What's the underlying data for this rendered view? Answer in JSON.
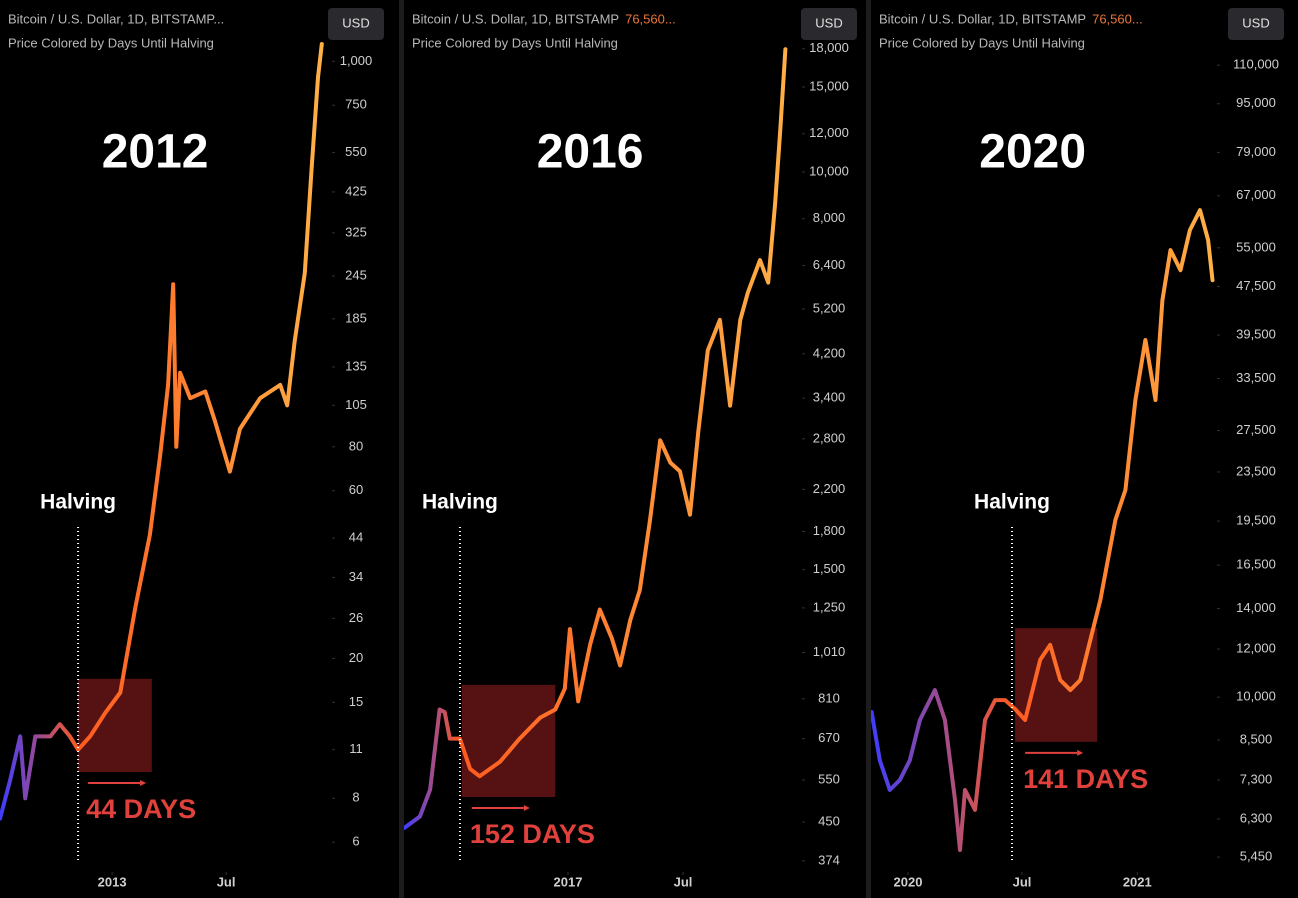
{
  "chart_data": [
    {
      "type": "line",
      "title": "Bitcoin / U.S. Dollar, 1D, BITSTAMP...",
      "subtitle": "Price Colored by Days Until Halving",
      "currency": "USD",
      "annotation": "2012",
      "halving_label": "Halving",
      "halving_x": -54,
      "duration_label": "44 DAYS",
      "highlight": {
        "x": [
          -54,
          63
        ],
        "y": [
          9.5,
          17.5
        ]
      },
      "log_scale": true,
      "line_colors": [
        "#3d3dff",
        "#ff5a1f",
        "#ffb347"
      ],
      "x": [
        -178,
        -162,
        -146,
        -138,
        -122,
        -98,
        -83,
        -67,
        -54,
        -35,
        -11,
        13,
        37,
        60,
        76,
        89,
        97,
        102,
        108,
        124,
        148,
        163,
        187,
        203,
        235,
        267,
        278,
        290,
        306,
        317,
        327,
        333
      ],
      "values": [
        7,
        9,
        12,
        8,
        12,
        12,
        13,
        12,
        11,
        12,
        14,
        16,
        28,
        45,
        75,
        120,
        232,
        80,
        130,
        110,
        115,
        95,
        68,
        90,
        110,
        120,
        105,
        160,
        250,
        500,
        900,
        1120
      ],
      "xlim": [
        -178,
        346
      ],
      "xticks": [
        {
          "value": 0,
          "label": "2013"
        },
        {
          "value": 181,
          "label": "Jul"
        }
      ],
      "ylim": [
        5,
        1150
      ],
      "yticks": [
        {
          "value": 1000,
          "label": "1,000"
        },
        750,
        550,
        425,
        325,
        245,
        185,
        135,
        105,
        80,
        60,
        44,
        34,
        26,
        20,
        15,
        11,
        8,
        6
      ]
    },
    {
      "type": "line",
      "title": "Bitcoin / U.S. Dollar, 1D, BITSTAMP",
      "price_label": "76,560...",
      "subtitle": "Price Colored by Days Until Halving",
      "currency": "USD",
      "annotation": "2016",
      "halving_label": "Halving",
      "halving_x": -170,
      "duration_label": "152 DAYS",
      "highlight": {
        "x": [
          -167,
          -20
        ],
        "y": [
          507,
          866
        ]
      },
      "log_scale": true,
      "line_colors": [
        "#3d3dff",
        "#ff5a1f",
        "#ffb347"
      ],
      "x": [
        -257,
        -233,
        -217,
        -202,
        -194,
        -186,
        -170,
        -154,
        -139,
        -107,
        -76,
        -44,
        -20,
        -5,
        3,
        16,
        35,
        50,
        69,
        82,
        98,
        113,
        129,
        145,
        161,
        176,
        192,
        205,
        220,
        239,
        255,
        271,
        283,
        302,
        315,
        326,
        334,
        342
      ],
      "values": [
        438,
        462,
        525,
        770,
        760,
        670,
        670,
        580,
        560,
        600,
        670,
        740,
        770,
        850,
        1130,
        800,
        1050,
        1240,
        1080,
        950,
        1180,
        1360,
        1900,
        2780,
        2500,
        2400,
        1950,
        2900,
        4270,
        4940,
        3280,
        4940,
        5630,
        6570,
        5900,
        8650,
        12250,
        17960
      ],
      "xlim": [
        -258,
        365
      ],
      "xticks": [
        {
          "value": 0,
          "label": "2017"
        },
        {
          "value": 181,
          "label": "Jul"
        }
      ],
      "ylim": [
        358,
        18770
      ],
      "yticks": [
        {
          "value": 18000,
          "label": "18,000"
        },
        {
          "value": 15000,
          "label": "15,000"
        },
        {
          "value": 12000,
          "label": "12,000"
        },
        {
          "value": 10000,
          "label": "10,000"
        },
        {
          "value": 8000,
          "label": "8,000"
        },
        {
          "value": 6400,
          "label": "6,400"
        },
        {
          "value": 5200,
          "label": "5,200"
        },
        {
          "value": 4200,
          "label": "4,200"
        },
        {
          "value": 3400,
          "label": "3,400"
        },
        {
          "value": 2800,
          "label": "2,800"
        },
        {
          "value": 2200,
          "label": "2,200"
        },
        {
          "value": 1800,
          "label": "1,800"
        },
        {
          "value": 1500,
          "label": "1,500"
        },
        {
          "value": 1250,
          "label": "1,250"
        },
        {
          "value": 1010,
          "label": "1,010"
        },
        810,
        670,
        550,
        450,
        374
      ]
    },
    {
      "type": "line",
      "title": "Bitcoin / U.S. Dollar, 1D, BITSTAMP",
      "price_label": "76,560...",
      "subtitle": "Price Colored by Days Until Halving",
      "currency": "USD",
      "annotation": "2020",
      "halving_label": "Halving",
      "halving_x": 166,
      "duration_label": "141 DAYS",
      "highlight": {
        "x": [
          171,
          302
        ],
        "y": [
          8440,
          12990
        ]
      },
      "log_scale": true,
      "line_colors": [
        "#3d3dff",
        "#ff5a1f",
        "#ffb347"
      ],
      "x": [
        -58,
        -45,
        -29,
        -13,
        3,
        19,
        43,
        59,
        75,
        83,
        91,
        107,
        123,
        139,
        155,
        171,
        187,
        211,
        227,
        243,
        259,
        275,
        291,
        307,
        331,
        347,
        363,
        379,
        395,
        406,
        419,
        435,
        450,
        466,
        479,
        486
      ],
      "values": [
        9450,
        7870,
        7030,
        7300,
        7870,
        9170,
        10270,
        9170,
        6770,
        5600,
        7030,
        6520,
        9170,
        9890,
        9890,
        9560,
        9170,
        11520,
        12190,
        10670,
        10270,
        10670,
        12420,
        14440,
        19590,
        21940,
        30870,
        38760,
        30870,
        45090,
        54530,
        50530,
        58830,
        63470,
        56650,
        48640
      ],
      "xlim": [
        -59,
        490
      ],
      "xticks": [
        {
          "value": 0,
          "label": "2020"
        },
        {
          "value": 182,
          "label": "Jul"
        },
        {
          "value": 366,
          "label": "2021"
        }
      ],
      "ylim": [
        5190,
        121000
      ],
      "yticks": [
        {
          "value": 110000,
          "label": "110,000"
        },
        {
          "value": 95000,
          "label": "95,000"
        },
        {
          "value": 79000,
          "label": "79,000"
        },
        {
          "value": 67000,
          "label": "67,000"
        },
        {
          "value": 55000,
          "label": "55,000"
        },
        {
          "value": 47500,
          "label": "47,500"
        },
        {
          "value": 39500,
          "label": "39,500"
        },
        {
          "value": 33500,
          "label": "33,500"
        },
        {
          "value": 27500,
          "label": "27,500"
        },
        {
          "value": 23500,
          "label": "23,500"
        },
        {
          "value": 19500,
          "label": "19,500"
        },
        {
          "value": 16500,
          "label": "16,500"
        },
        {
          "value": 14000,
          "label": "14,000"
        },
        {
          "value": 12000,
          "label": "12,000"
        },
        {
          "value": 10000,
          "label": "10,000"
        },
        {
          "value": 8500,
          "label": "8,500"
        },
        {
          "value": 7300,
          "label": "7,300"
        },
        {
          "value": 6300,
          "label": "6,300"
        },
        {
          "value": 5450,
          "label": "5,450"
        }
      ]
    }
  ]
}
